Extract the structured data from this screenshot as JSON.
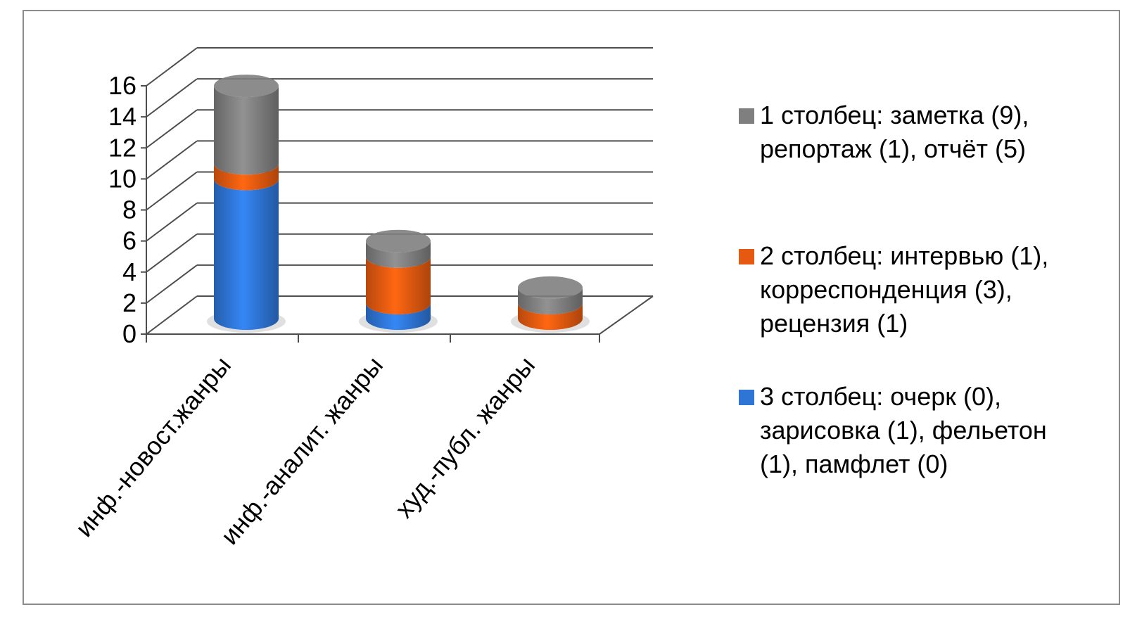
{
  "chart_data": {
    "type": "bar",
    "style": "3d-stacked-cylinder",
    "categories": [
      "инф.-новост.жанры",
      "инф.-аналит. жанры",
      "худ.-публ. жанры"
    ],
    "series": [
      {
        "name": "3 столбец: очерк (0), зарисовка (1), фельетон (1), памфлет (0)",
        "color": "#2e75d6",
        "values": [
          9,
          1,
          0
        ]
      },
      {
        "name": "2 столбец: интервью (1), корреспонденция (3), рецензия (1)",
        "color": "#e55a10",
        "values": [
          1,
          3,
          1
        ]
      },
      {
        "name": "1 столбец: заметка (9), репортаж (1), отчёт (5)",
        "color": "#7f7f7f",
        "values": [
          5,
          1,
          1
        ]
      }
    ],
    "ylim": [
      0,
      16
    ],
    "yticks": [
      "0",
      "2",
      "4",
      "6",
      "8",
      "10",
      "12",
      "14",
      "16"
    ],
    "grid": true,
    "legend_position": "right",
    "legend": [
      {
        "label": "1 столбец: заметка (9), репортаж (1), отчёт (5)",
        "color": "#7f7f7f"
      },
      {
        "label": "2 столбец: интервью (1), корреспонденция (3), рецензия (1)",
        "color": "#e55a10"
      },
      {
        "label": "3 столбец: очерк (0), зарисовка (1), фельетон (1), памфлет (0)",
        "color": "#2e75d6"
      }
    ]
  }
}
